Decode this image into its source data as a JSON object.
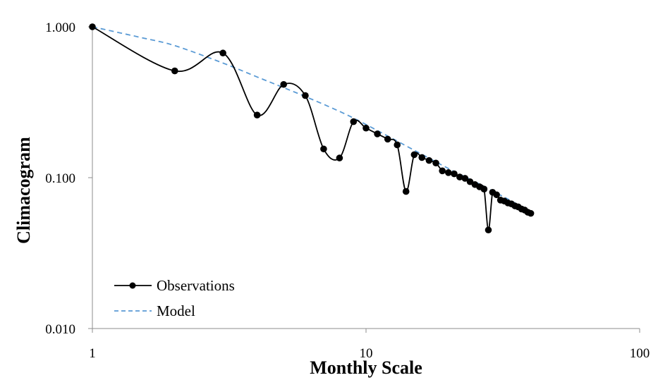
{
  "chart_data": {
    "type": "line",
    "xlabel": "Monthly Scale",
    "ylabel": "Climacogram",
    "x_scale": "log",
    "y_scale": "log",
    "xlim": [
      1,
      100
    ],
    "ylim": [
      0.01,
      1
    ],
    "x_ticks": [
      "1",
      "10",
      "100"
    ],
    "y_ticks": [
      "1.000",
      "0.100",
      "0.010"
    ],
    "grid": false,
    "legend_position": "bottom-left",
    "series": [
      {
        "name": "Observations",
        "color": "#000000",
        "style": "solid-with-markers",
        "x": [
          1,
          2,
          3,
          4,
          5,
          6,
          7,
          8,
          9,
          10,
          11,
          12,
          13,
          14,
          15,
          16,
          17,
          18,
          19,
          20,
          21,
          22,
          23,
          24,
          25,
          26,
          27,
          28,
          29,
          30,
          31,
          32,
          33,
          34,
          35,
          36,
          37,
          38,
          39,
          40
        ],
        "y": [
          1.0,
          0.51,
          0.67,
          0.26,
          0.415,
          0.35,
          0.155,
          0.135,
          0.235,
          0.213,
          0.195,
          0.18,
          0.165,
          0.081,
          0.142,
          0.136,
          0.13,
          0.125,
          0.111,
          0.108,
          0.106,
          0.101,
          0.099,
          0.094,
          0.09,
          0.087,
          0.084,
          0.045,
          0.08,
          0.077,
          0.071,
          0.07,
          0.068,
          0.067,
          0.065,
          0.064,
          0.062,
          0.061,
          0.059,
          0.058
        ]
      },
      {
        "name": "Model",
        "color": "#5B9BD5",
        "style": "dashed",
        "x": [
          1,
          1.5,
          2,
          3,
          4,
          5,
          6,
          8,
          10,
          15,
          20,
          25,
          30,
          35,
          40
        ],
        "y": [
          1.0,
          0.85,
          0.75,
          0.575,
          0.465,
          0.395,
          0.345,
          0.275,
          0.225,
          0.152,
          0.115,
          0.094,
          0.079,
          0.068,
          0.059
        ]
      }
    ]
  }
}
